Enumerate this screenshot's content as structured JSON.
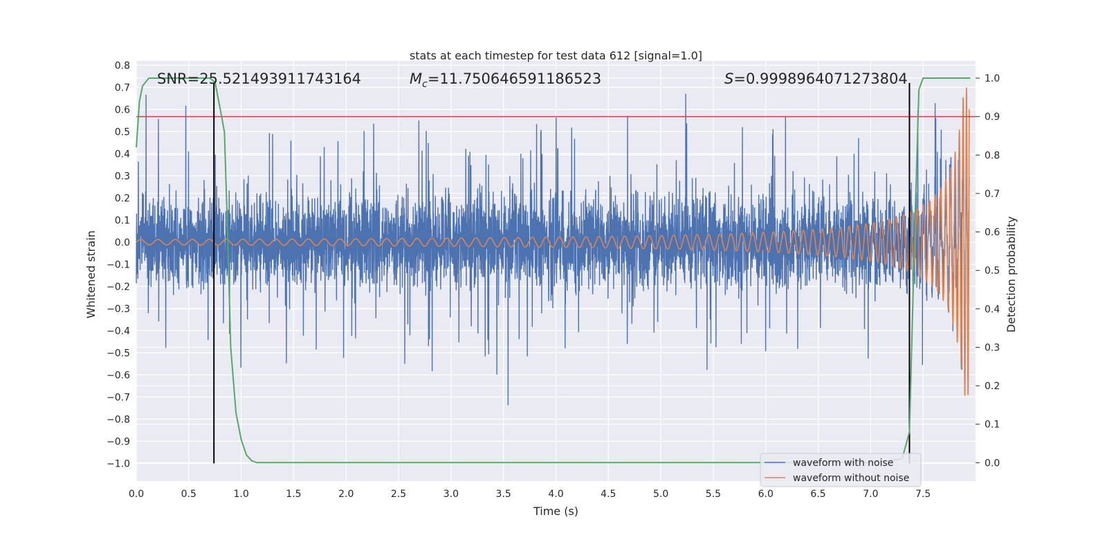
{
  "chart_data": {
    "type": "line",
    "title": "stats at each timestep for test data 612 [signal=1.0]",
    "xlabel": "Time (s)",
    "ylabel_left": "Whitened strain",
    "ylabel_right": "Detection probability",
    "xlim": [
      0.0,
      8.0
    ],
    "ylim_left": [
      -1.08,
      0.82
    ],
    "ylim_right": [
      -0.048,
      1.045
    ],
    "x_ticks": [
      "0.0",
      "0.5",
      "1.0",
      "1.5",
      "2.0",
      "2.5",
      "3.0",
      "3.5",
      "4.0",
      "4.5",
      "5.0",
      "5.5",
      "6.0",
      "6.5",
      "7.0",
      "7.5"
    ],
    "y_left_ticks": [
      "0.8",
      "0.7",
      "0.6",
      "0.5",
      "0.4",
      "0.3",
      "0.2",
      "0.1",
      "0.0",
      "−0.1",
      "−0.2",
      "−0.3",
      "−0.4",
      "−0.5",
      "−0.6",
      "−0.7",
      "−0.8",
      "−0.9",
      "−1.0"
    ],
    "y_right_ticks": [
      "1.0",
      "0.9",
      "0.8",
      "0.7",
      "0.6",
      "0.5",
      "0.4",
      "0.3",
      "0.2",
      "0.1",
      "0.0"
    ],
    "annotations": {
      "snr": "SNR=25.521493911743164",
      "mc_symbol": "M",
      "mc_sub": "c",
      "mc_value": "=11.750646591186523",
      "s_symbol": "S",
      "s_value": "=0.9998964071273804"
    },
    "threshold": {
      "value": 0.9,
      "axis": "right",
      "color": "#c44e52"
    },
    "markers": [
      {
        "x": 0.74,
        "y_from": -1.0,
        "y_to": 0.72
      },
      {
        "x": 7.37,
        "y_from": -1.0,
        "y_to": 0.72
      }
    ],
    "series": [
      {
        "name": "waveform with noise",
        "color": "#4c72b0",
        "axis": "left"
      },
      {
        "name": "waveform without noise",
        "color": "#dd8452",
        "axis": "left"
      },
      {
        "color": "#55a868",
        "axis": "right",
        "x": [
          0.0,
          0.03,
          0.06,
          0.12,
          0.2,
          0.3,
          0.4,
          0.5,
          0.6,
          0.7,
          0.75,
          0.8,
          0.84,
          0.87,
          0.9,
          0.95,
          1.0,
          1.05,
          1.1,
          1.15,
          1.2,
          1.5,
          2.0,
          3.0,
          4.0,
          5.0,
          6.0,
          7.0,
          7.3,
          7.37,
          7.42,
          7.46,
          7.5,
          7.6,
          7.7,
          7.8,
          7.95
        ],
        "values": [
          0.82,
          0.94,
          0.98,
          1.0,
          1.0,
          1.0,
          1.0,
          1.0,
          1.0,
          1.0,
          0.99,
          0.92,
          0.86,
          0.6,
          0.3,
          0.13,
          0.06,
          0.02,
          0.005,
          0.0,
          0.0,
          0.0,
          0.0,
          0.0,
          0.0,
          0.0,
          0.0,
          0.0,
          0.01,
          0.08,
          0.6,
          0.97,
          1.0,
          1.0,
          1.0,
          1.0,
          1.0
        ]
      }
    ],
    "legend": {
      "placement": "lower-right"
    },
    "grid": true,
    "colors": {
      "plot_bg": "#eaeaf2",
      "grid": "#ffffff",
      "text": "#262626"
    }
  }
}
